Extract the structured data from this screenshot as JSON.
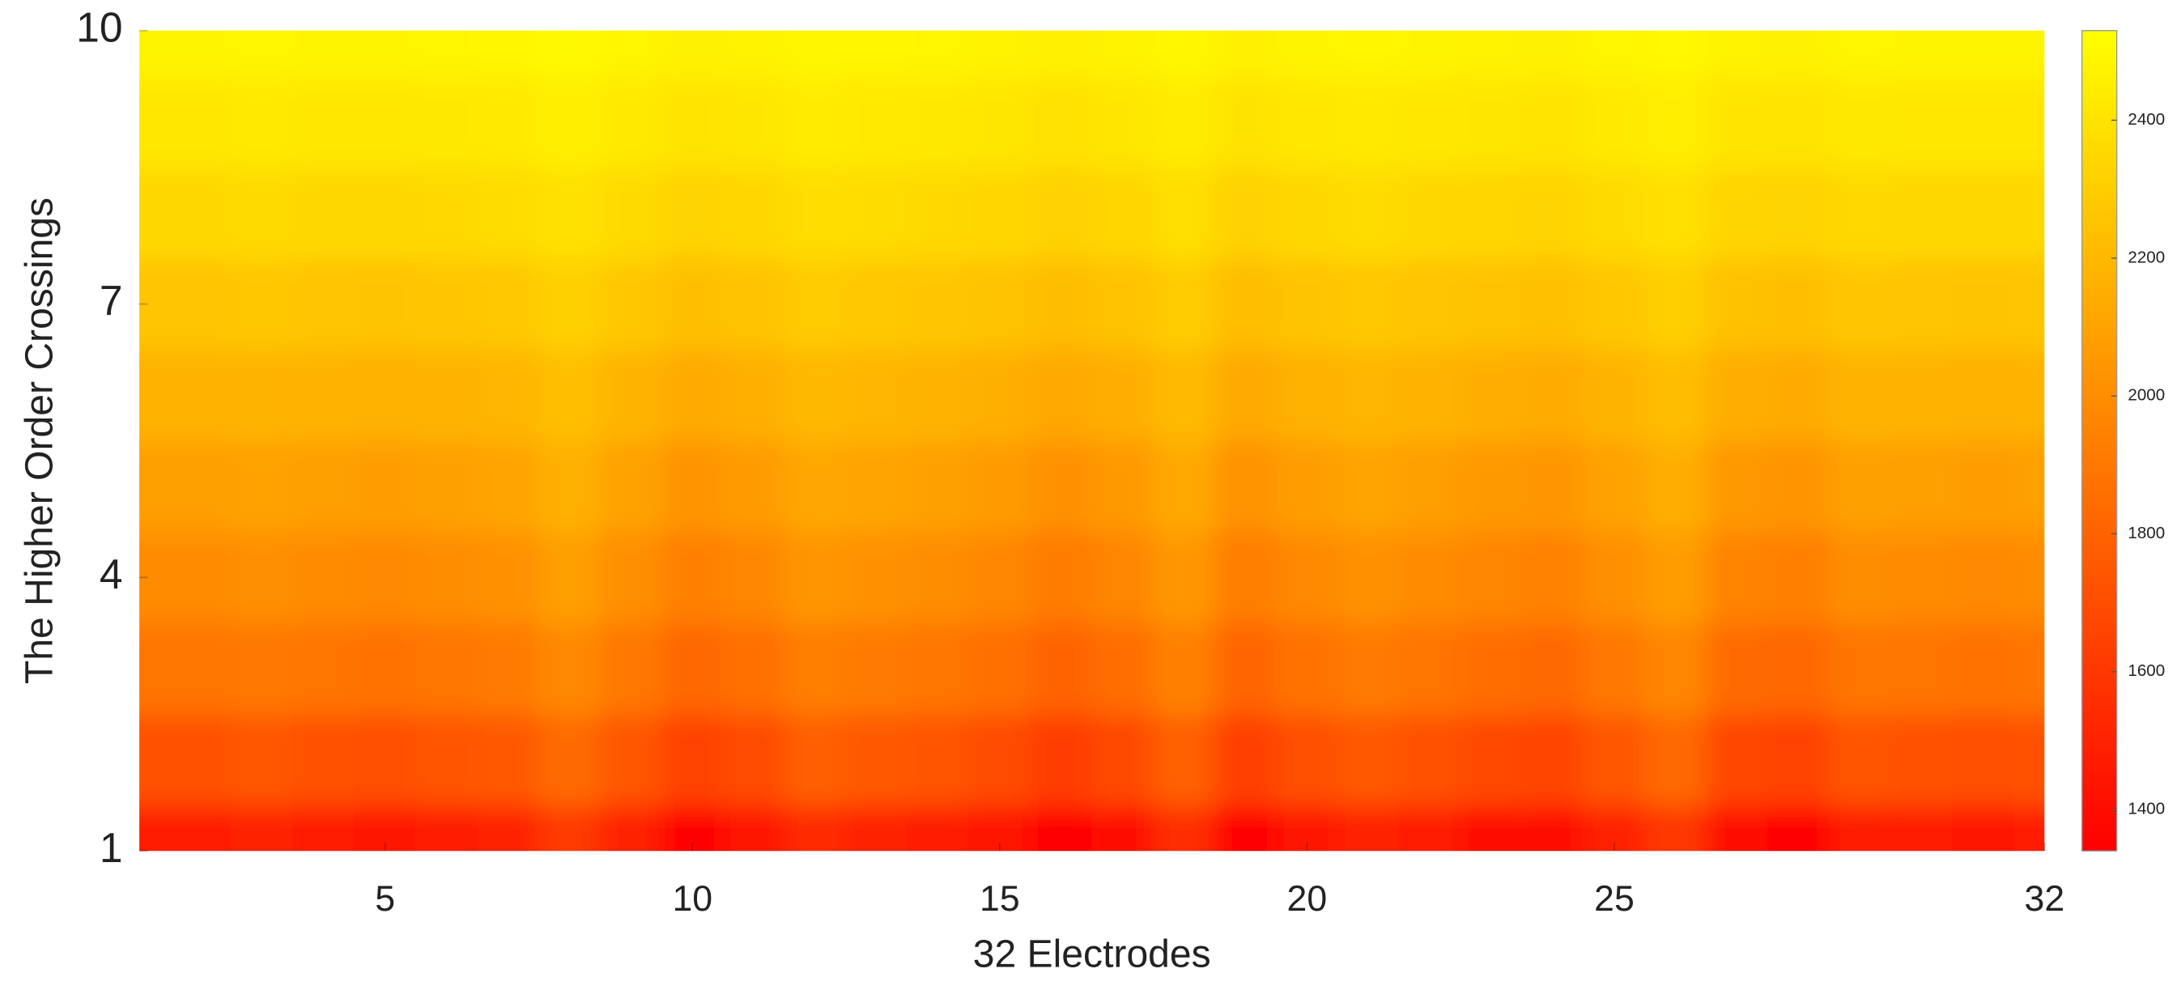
{
  "chart_data": {
    "type": "heatmap",
    "xlabel": "32 Electrodes",
    "ylabel": "The Higher Order Crossings",
    "x": [
      1,
      2,
      3,
      4,
      5,
      6,
      7,
      8,
      9,
      10,
      11,
      12,
      13,
      14,
      15,
      16,
      17,
      18,
      19,
      20,
      21,
      22,
      23,
      24,
      25,
      26,
      27,
      28,
      29,
      30,
      31,
      32
    ],
    "y": [
      1,
      2,
      3,
      4,
      5,
      6,
      7,
      8,
      9,
      10
    ],
    "values": [
      [
        1460,
        1460,
        1490,
        1460,
        1445,
        1475,
        1505,
        1610,
        1490,
        1370,
        1430,
        1535,
        1505,
        1475,
        1430,
        1340,
        1415,
        1550,
        1355,
        1445,
        1505,
        1460,
        1415,
        1385,
        1490,
        1595,
        1400,
        1370,
        1475,
        1460,
        1445,
        1460
      ],
      [
        1720,
        1720,
        1744,
        1720,
        1708,
        1732,
        1756,
        1840,
        1744,
        1648,
        1696,
        1780,
        1756,
        1732,
        1696,
        1624,
        1684,
        1792,
        1636,
        1708,
        1756,
        1720,
        1684,
        1660,
        1744,
        1828,
        1672,
        1648,
        1732,
        1720,
        1708,
        1720
      ],
      [
        1880,
        1880,
        1900,
        1880,
        1870,
        1890,
        1910,
        1980,
        1900,
        1820,
        1860,
        1930,
        1910,
        1890,
        1860,
        1800,
        1850,
        1940,
        1810,
        1870,
        1910,
        1880,
        1850,
        1830,
        1900,
        1970,
        1840,
        1820,
        1890,
        1880,
        1870,
        1880
      ],
      [
        1990,
        1990,
        2008,
        1990,
        1981,
        1999,
        2017,
        2080,
        2008,
        1936,
        1972,
        2035,
        2017,
        1999,
        1972,
        1918,
        1963,
        2044,
        1927,
        1981,
        2017,
        1990,
        1963,
        1945,
        2008,
        2071,
        1954,
        1936,
        1999,
        1990,
        1981,
        1990
      ],
      [
        2080,
        2080,
        2096,
        2080,
        2072,
        2088,
        2104,
        2160,
        2096,
        2032,
        2064,
        2120,
        2104,
        2088,
        2064,
        2016,
        2056,
        2128,
        2024,
        2072,
        2104,
        2080,
        2056,
        2040,
        2096,
        2152,
        2048,
        2032,
        2088,
        2080,
        2072,
        2080
      ],
      [
        2170,
        2170,
        2182,
        2170,
        2164,
        2176,
        2188,
        2230,
        2182,
        2134,
        2158,
        2200,
        2188,
        2176,
        2158,
        2122,
        2152,
        2206,
        2128,
        2164,
        2188,
        2170,
        2152,
        2140,
        2182,
        2224,
        2146,
        2134,
        2176,
        2170,
        2164,
        2170
      ],
      [
        2260,
        2260,
        2270,
        2260,
        2255,
        2265,
        2275,
        2310,
        2270,
        2230,
        2250,
        2285,
        2275,
        2265,
        2250,
        2220,
        2245,
        2290,
        2225,
        2255,
        2275,
        2260,
        2245,
        2235,
        2270,
        2305,
        2240,
        2230,
        2265,
        2260,
        2255,
        2260
      ],
      [
        2350,
        2350,
        2358,
        2350,
        2346,
        2354,
        2362,
        2390,
        2358,
        2326,
        2342,
        2370,
        2362,
        2354,
        2342,
        2318,
        2338,
        2374,
        2322,
        2346,
        2362,
        2350,
        2338,
        2330,
        2358,
        2386,
        2334,
        2326,
        2354,
        2350,
        2346,
        2350
      ],
      [
        2420,
        2420,
        2426,
        2420,
        2417,
        2423,
        2429,
        2450,
        2426,
        2402,
        2414,
        2435,
        2429,
        2423,
        2414,
        2396,
        2411,
        2438,
        2399,
        2417,
        2429,
        2420,
        2411,
        2405,
        2426,
        2447,
        2408,
        2402,
        2423,
        2420,
        2417,
        2420
      ],
      [
        2480,
        2480,
        2484,
        2480,
        2478,
        2482,
        2486,
        2500,
        2484,
        2468,
        2476,
        2490,
        2486,
        2482,
        2476,
        2464,
        2474,
        2492,
        2466,
        2478,
        2486,
        2480,
        2474,
        2470,
        2484,
        2498,
        2472,
        2468,
        2482,
        2480,
        2478,
        2480
      ]
    ],
    "xlim": [
      1,
      32
    ],
    "xticks": [
      5,
      10,
      15,
      20,
      25,
      32
    ],
    "ylim": [
      1,
      10
    ],
    "yticks": [
      1,
      4,
      7,
      10
    ],
    "clim": [
      1340,
      2530
    ],
    "cticks": [
      1400,
      1600,
      1800,
      2000,
      2200,
      2400
    ],
    "colormap": [
      "#ff0000",
      "#ffff00"
    ]
  }
}
